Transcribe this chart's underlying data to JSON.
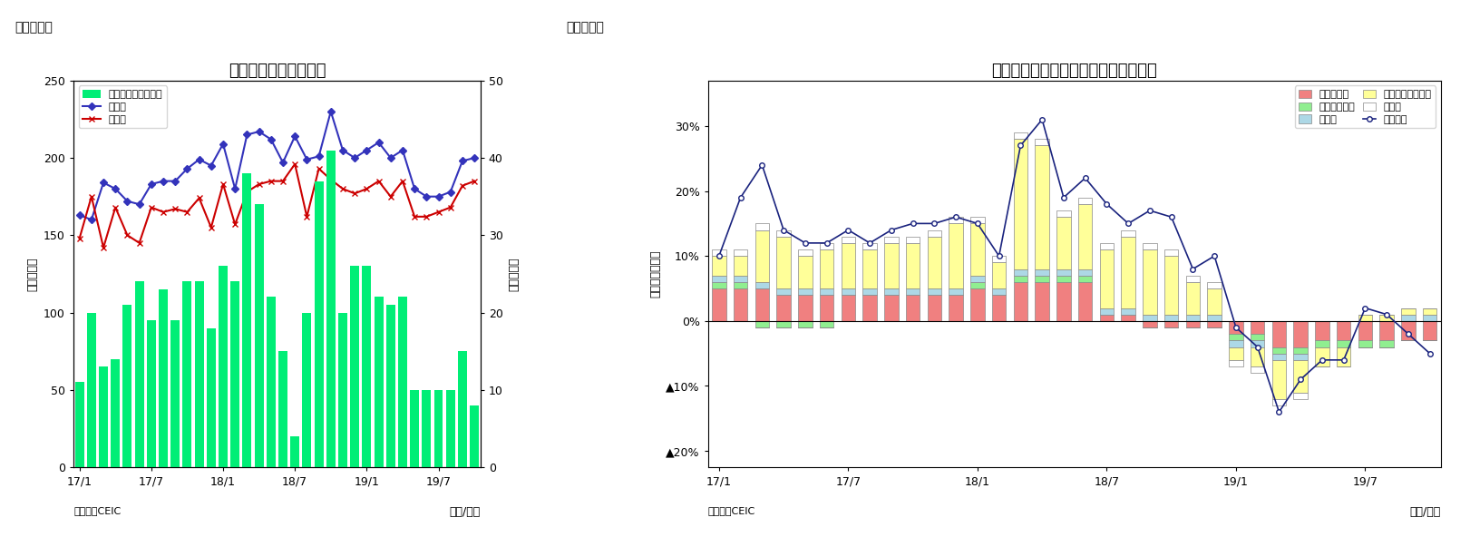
{
  "chart7": {
    "title": "マレーシア　貿易収支",
    "ylabel_left": "（億ドル）",
    "ylabel_right": "（億ドル）",
    "xlabel": "（年/月）",
    "ylim_left": [
      0,
      250
    ],
    "ylim_right": [
      0,
      50
    ],
    "yticks_left": [
      0,
      50,
      100,
      150,
      200,
      250
    ],
    "yticks_right": [
      0,
      10,
      20,
      30,
      40,
      50
    ],
    "xtick_labels": [
      "17/1",
      "17/7",
      "18/1",
      "18/7",
      "19/1",
      "19/7"
    ],
    "xtick_pos": [
      0,
      6,
      12,
      18,
      24,
      30
    ],
    "source": "（資料）CEIC",
    "fig_label": "（図表７）",
    "bar_color": "#00EE76",
    "bar_values": [
      11,
      20,
      13,
      14,
      21,
      24,
      19,
      23,
      19,
      24,
      24,
      18,
      26,
      24,
      38,
      34,
      22,
      15,
      4,
      20,
      37,
      41,
      20,
      26,
      26,
      22,
      21,
      22,
      10,
      10,
      10,
      10,
      15,
      8
    ],
    "export_values": [
      163,
      160,
      184,
      180,
      172,
      170,
      183,
      185,
      185,
      193,
      199,
      195,
      209,
      180,
      215,
      217,
      212,
      197,
      214,
      199,
      201,
      230,
      205,
      200,
      205,
      210,
      200,
      205,
      180,
      175,
      175,
      178,
      198,
      200
    ],
    "import_values": [
      148,
      175,
      142,
      168,
      150,
      145,
      168,
      165,
      167,
      165,
      174,
      155,
      183,
      157,
      178,
      183,
      185,
      185,
      196,
      162,
      193,
      186,
      180,
      177,
      180,
      185,
      175,
      185,
      162,
      162,
      165,
      168,
      182,
      185
    ],
    "legend_bar": "貿易収支（右目盛）",
    "legend_export": "輸出額",
    "legend_import": "輸入額",
    "export_color": "#3333BB",
    "import_color": "#CC0000",
    "n_months": 34
  },
  "chart8": {
    "title": "マレーシア　輸出の伸び率（品目別）",
    "ylabel": "（前年同月比）",
    "xlabel": "（年/月）",
    "ylim": [
      -0.225,
      0.37
    ],
    "ytick_labels": [
      "▲20%",
      "▲10%",
      "0%",
      "10%",
      "20%",
      "30%"
    ],
    "ytick_values": [
      -0.2,
      -0.1,
      0.0,
      0.1,
      0.2,
      0.3
    ],
    "xtick_labels": [
      "17/1",
      "17/7",
      "18/1",
      "18/7",
      "19/1",
      "19/7"
    ],
    "xtick_pos": [
      0,
      6,
      12,
      18,
      24,
      30
    ],
    "source": "（資料）CEIC",
    "fig_label": "（図表８）",
    "categories": [
      "鉱物性燃料",
      "動植物性油脂",
      "製造品",
      "機械・輸送用機器",
      "その他"
    ],
    "cat_colors": [
      "#F08080",
      "#90EE90",
      "#ADD8E6",
      "#FFFF99",
      "#FFFFFF"
    ],
    "cat_edgecolors": [
      "#888888",
      "#888888",
      "#888888",
      "#888888",
      "#888888"
    ],
    "line_label": "輸出合計",
    "line_color": "#1a237e",
    "n_months": 34,
    "mineral_fuel": [
      0.05,
      0.05,
      0.05,
      0.04,
      0.04,
      0.04,
      0.04,
      0.04,
      0.04,
      0.04,
      0.04,
      0.04,
      0.05,
      0.04,
      0.06,
      0.06,
      0.06,
      0.06,
      0.01,
      0.01,
      -0.01,
      -0.01,
      -0.01,
      -0.01,
      -0.02,
      -0.02,
      -0.04,
      -0.04,
      -0.03,
      -0.03,
      -0.03,
      -0.03,
      -0.03,
      -0.03
    ],
    "animal_oil": [
      0.01,
      0.01,
      -0.01,
      -0.01,
      -0.01,
      -0.01,
      0.0,
      0.0,
      0.0,
      0.0,
      0.0,
      0.0,
      0.01,
      0.0,
      0.01,
      0.01,
      0.01,
      0.01,
      0.0,
      0.0,
      0.0,
      0.0,
      0.0,
      0.0,
      -0.01,
      -0.01,
      -0.01,
      -0.01,
      -0.01,
      -0.01,
      -0.01,
      -0.01,
      0.0,
      0.0
    ],
    "manufactured": [
      0.01,
      0.01,
      0.01,
      0.01,
      0.01,
      0.01,
      0.01,
      0.01,
      0.01,
      0.01,
      0.01,
      0.01,
      0.01,
      0.01,
      0.01,
      0.01,
      0.01,
      0.01,
      0.01,
      0.01,
      0.01,
      0.01,
      0.01,
      0.01,
      -0.01,
      -0.01,
      -0.01,
      -0.01,
      0.0,
      0.0,
      0.0,
      0.0,
      0.01,
      0.01
    ],
    "machinery": [
      0.03,
      0.03,
      0.08,
      0.08,
      0.05,
      0.06,
      0.07,
      0.06,
      0.07,
      0.07,
      0.08,
      0.1,
      0.08,
      0.04,
      0.2,
      0.19,
      0.08,
      0.1,
      0.09,
      0.11,
      0.1,
      0.09,
      0.05,
      0.04,
      -0.02,
      -0.03,
      -0.06,
      -0.05,
      -0.03,
      -0.03,
      0.01,
      0.01,
      0.01,
      0.01
    ],
    "other": [
      0.01,
      0.01,
      0.01,
      0.01,
      0.01,
      0.01,
      0.01,
      0.01,
      0.01,
      0.01,
      0.01,
      0.01,
      0.01,
      0.01,
      0.01,
      0.01,
      0.01,
      0.01,
      0.01,
      0.01,
      0.01,
      0.01,
      0.01,
      0.01,
      -0.01,
      -0.01,
      -0.01,
      -0.01,
      0.0,
      0.0,
      0.0,
      0.0,
      0.0,
      0.0
    ],
    "total_line": [
      0.1,
      0.19,
      0.24,
      0.14,
      0.12,
      0.12,
      0.14,
      0.12,
      0.14,
      0.15,
      0.15,
      0.16,
      0.15,
      0.1,
      0.27,
      0.31,
      0.19,
      0.22,
      0.18,
      0.15,
      0.17,
      0.16,
      0.08,
      0.1,
      -0.01,
      -0.04,
      -0.14,
      -0.09,
      -0.06,
      -0.06,
      0.02,
      0.01,
      -0.02,
      -0.05
    ]
  }
}
